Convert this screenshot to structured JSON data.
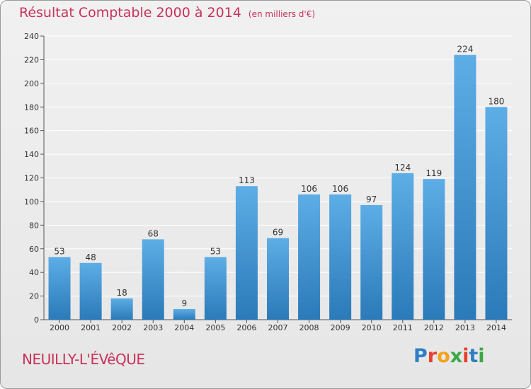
{
  "header": {
    "title": "Résultat Comptable 2000 à 2014",
    "subtitle": "(en milliers d'€)"
  },
  "footer": {
    "location": "NEUILLY-L'ÉVêQUE",
    "brand_letters": [
      "P",
      "r",
      "o",
      "x",
      "i",
      "t",
      "i"
    ],
    "brand_colors": [
      "#2e7ec6",
      "#e8402c",
      "#f2a31b",
      "#3aa845",
      "#e8402c",
      "#2e7ec6",
      "#3aa845"
    ]
  },
  "colors": {
    "bar_top": "#5dade6",
    "bar_bottom": "#2b7ab9",
    "text": "#333333",
    "grid": "#ffffff",
    "accent": "#c8325a"
  },
  "chart_data": {
    "type": "bar",
    "categories": [
      "2000",
      "2001",
      "2002",
      "2003",
      "2004",
      "2005",
      "2006",
      "2007",
      "2008",
      "2009",
      "2010",
      "2011",
      "2012",
      "2013",
      "2014"
    ],
    "values": [
      53,
      48,
      18,
      68,
      9,
      53,
      113,
      69,
      106,
      106,
      97,
      124,
      119,
      224,
      180
    ],
    "title": "Résultat Comptable 2000 à 2014",
    "xlabel": "",
    "ylabel": "",
    "ylim": [
      0,
      240
    ],
    "yticks": [
      0,
      20,
      40,
      60,
      80,
      100,
      120,
      140,
      160,
      180,
      200,
      220,
      240
    ],
    "grid": true,
    "data_labels": true
  }
}
